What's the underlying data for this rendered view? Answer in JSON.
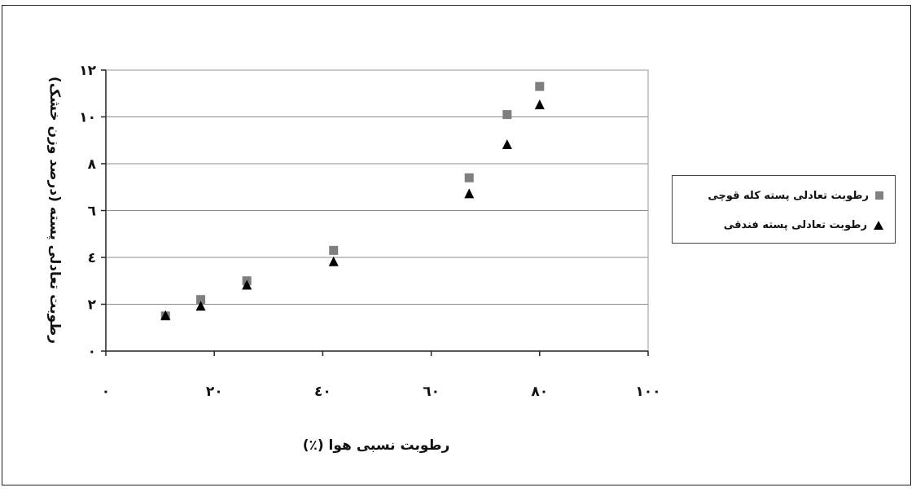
{
  "chart_data": {
    "type": "scatter",
    "xlabel": "رطوبت نسبی هوا (٪)",
    "ylabel": "رطوبت تعادلی پسته (درصد وزن خشک)",
    "xlim": [
      0,
      100
    ],
    "ylim": [
      0,
      12
    ],
    "x_ticks": [
      0,
      20,
      40,
      60,
      80,
      100
    ],
    "x_tick_labels": [
      "۰",
      "۲۰",
      "٤۰",
      "٦۰",
      "۸۰",
      "۱۰۰"
    ],
    "y_ticks": [
      0,
      2,
      4,
      6,
      8,
      10,
      12
    ],
    "y_tick_labels": [
      "۰",
      "۲",
      "٤",
      "٦",
      "۸",
      "۱۰",
      "۱۲"
    ],
    "grid": "horizontal",
    "legend_position": "right",
    "series": [
      {
        "name": "رطوبت تعادلی پسته کله قوچی",
        "marker": "square",
        "color": "#7f7f7f",
        "points": [
          {
            "x": 11,
            "y": 1.5
          },
          {
            "x": 17.5,
            "y": 2.2
          },
          {
            "x": 26,
            "y": 3.0
          },
          {
            "x": 42,
            "y": 4.3
          },
          {
            "x": 67,
            "y": 7.4
          },
          {
            "x": 74,
            "y": 10.1
          },
          {
            "x": 80,
            "y": 11.3
          }
        ]
      },
      {
        "name": "رطوبت تعادلی پسته فندقی",
        "marker": "triangle",
        "color": "#000000",
        "points": [
          {
            "x": 11,
            "y": 1.5
          },
          {
            "x": 17.5,
            "y": 1.9
          },
          {
            "x": 26,
            "y": 2.8
          },
          {
            "x": 42,
            "y": 3.8
          },
          {
            "x": 67,
            "y": 6.7
          },
          {
            "x": 74,
            "y": 8.8
          },
          {
            "x": 80,
            "y": 10.5
          }
        ]
      }
    ]
  }
}
